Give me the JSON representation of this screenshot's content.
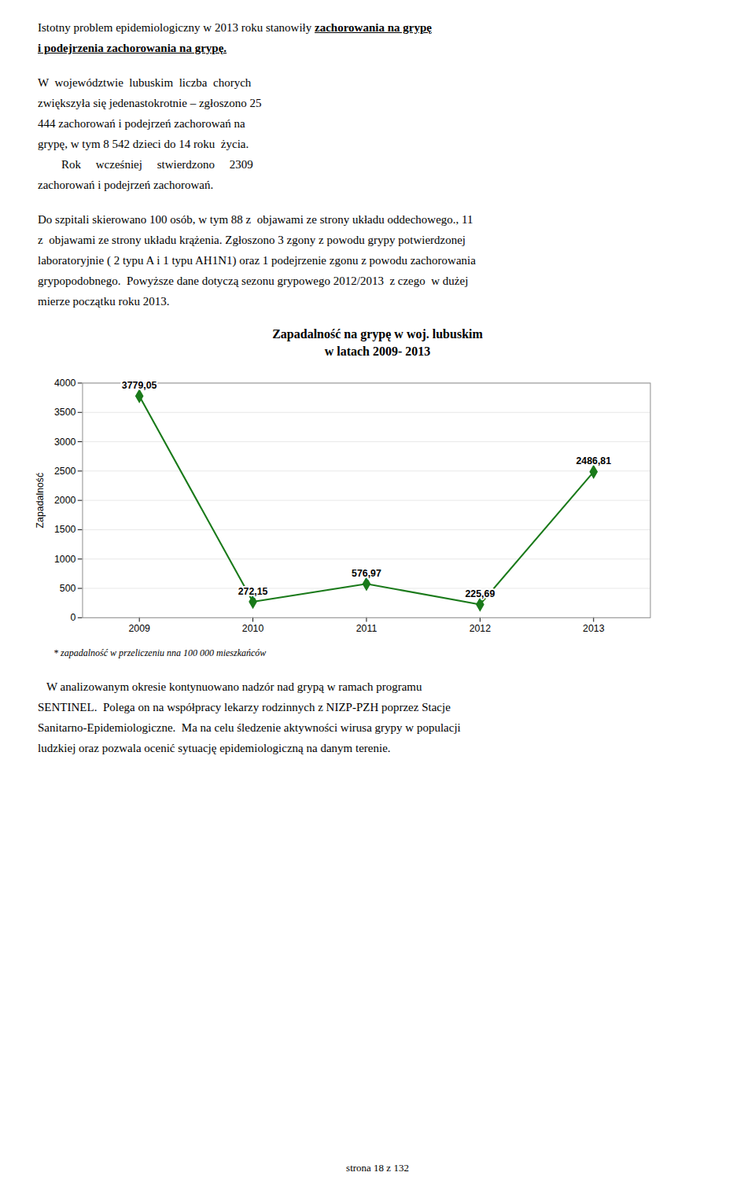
{
  "chart_data": {
    "type": "line",
    "title": "Zapadalność na grypę w woj. lubuskim",
    "subtitle": "w latach 2009- 2013",
    "x": [
      2009,
      2010,
      2011,
      2012,
      2013
    ],
    "values": [
      3779.05,
      272.15,
      576.97,
      225.69,
      2486.81
    ],
    "value_labels": [
      "3779,05",
      "272,15",
      "576,97",
      "225,69",
      "2486,81"
    ],
    "data_labels": true,
    "color": "#1a7a1a",
    "marker": "diamond",
    "line_style": "solid",
    "xlim": [
      2008.5,
      2013.5
    ],
    "xticks": [
      2009,
      2010,
      2011,
      2012,
      2013
    ],
    "ylim": [
      0,
      4000
    ],
    "yticks": [
      0,
      500,
      1000,
      1500,
      2000,
      2500,
      3000,
      3500,
      4000
    ],
    "ylabel": "Zapadalność",
    "grid": true,
    "caption": "* zapadalność w przeliczeniu nna 100 000 mieszkańców"
  },
  "page_text": {
    "intro": [
      "Istotny problem epidemiologiczny w 2013 roku stanowiły ",
      "zachorowania na grypę",
      "i podejrzenia zachorowania na grypę."
    ],
    "paragraphs_before_chart": [
      [
        "W  województwie  lubuskim  liczba  chorych",
        "zwiększyła się jedenastokrotnie – zgłoszono 25",
        "444 zachorowań i podejrzeń zachorowań na",
        "grypę, w tym 8 542 dzieci do 14 roku  życia.",
        "        Rok     wcześniej     stwierdzono     2309",
        "zachorowań i podejrzeń zachorowań."
      ],
      [
        "Do szpitali skierowano 100 osób, w tym 88 z  objawami ze strony układu oddechowego., 11",
        "z  objawami ze strony układu krążenia. Zgłoszono 3 zgony z powodu grypy potwierdzonej",
        "laboratoryjnie ( 2 typu A i 1 typu AH1N1) oraz 1 podejrzenie zgonu z powodu zachorowania",
        "grypopodobnego.  Powyższe dane dotyczą sezonu grypowego 2012/2013  z czego  w dużej",
        "mierze początku roku 2013."
      ]
    ],
    "paragraphs_after_chart": [
      [
        "   W analizowanym okresie kontynuowano nadzór nad grypą w ramach programu",
        "SENTINEL.  Polega on na współpracy lekarzy rodzinnych z NIZP-PZH poprzez Stacje",
        "Sanitarno-Epidemiologiczne.  Ma na celu śledzenie aktywności wirusa grypy w populacji",
        "ludzkiej oraz pozwala ocenić sytuację epidemiologiczną na danym terenie."
      ]
    ],
    "footer": "strona 18 z 132"
  }
}
